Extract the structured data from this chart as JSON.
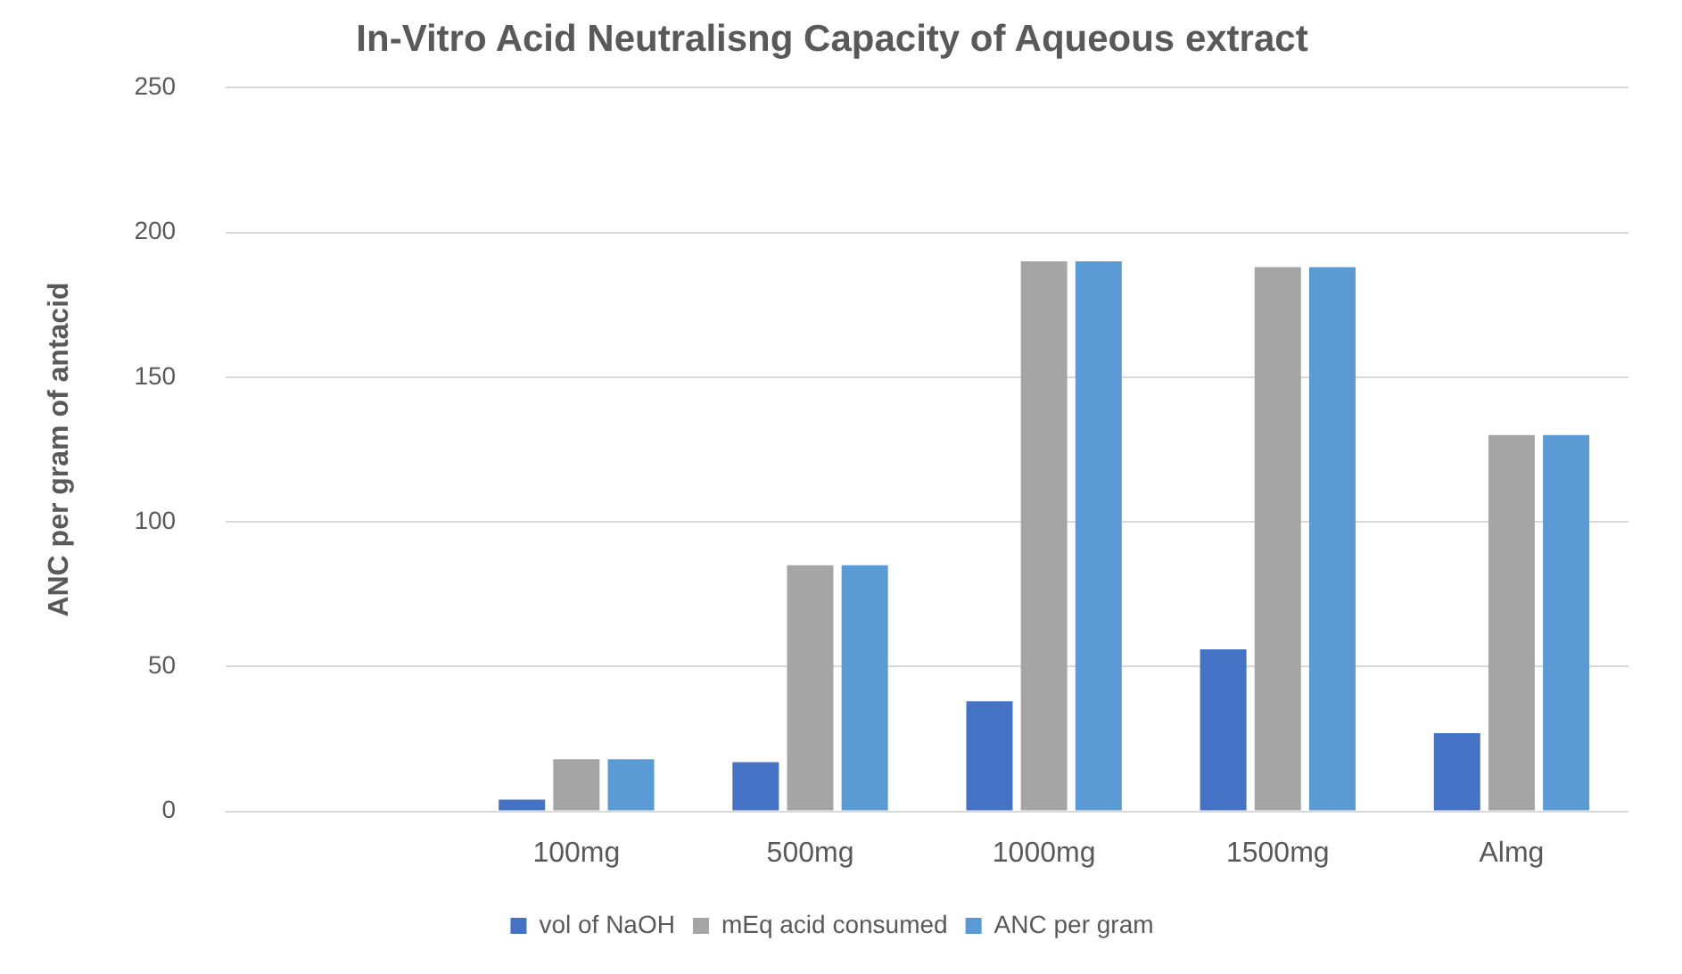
{
  "chart_data": {
    "type": "bar",
    "title": "In-Vitro Acid Neutralisng Capacity of Aqueous extract",
    "ylabel": "ANC per gram of antacid",
    "categories": [
      null,
      "100mg",
      "500mg",
      "1000mg",
      "1500mg",
      "Almg"
    ],
    "series": [
      {
        "name": "vol of NaOH",
        "color": "#4472c4",
        "values": [
          null,
          4,
          17,
          38,
          56,
          27
        ]
      },
      {
        "name": "mEq acid consumed",
        "color": "#a5a5a5",
        "values": [
          null,
          18,
          85,
          190,
          188,
          130
        ]
      },
      {
        "name": "ANC per gram",
        "color": "#5b9bd5",
        "values": [
          null,
          18,
          85,
          190,
          188,
          130
        ]
      }
    ],
    "ylim": [
      0,
      250
    ],
    "yticks": [
      0,
      50,
      100,
      150,
      200,
      250
    ],
    "grid": "y",
    "legend": "bottom"
  }
}
